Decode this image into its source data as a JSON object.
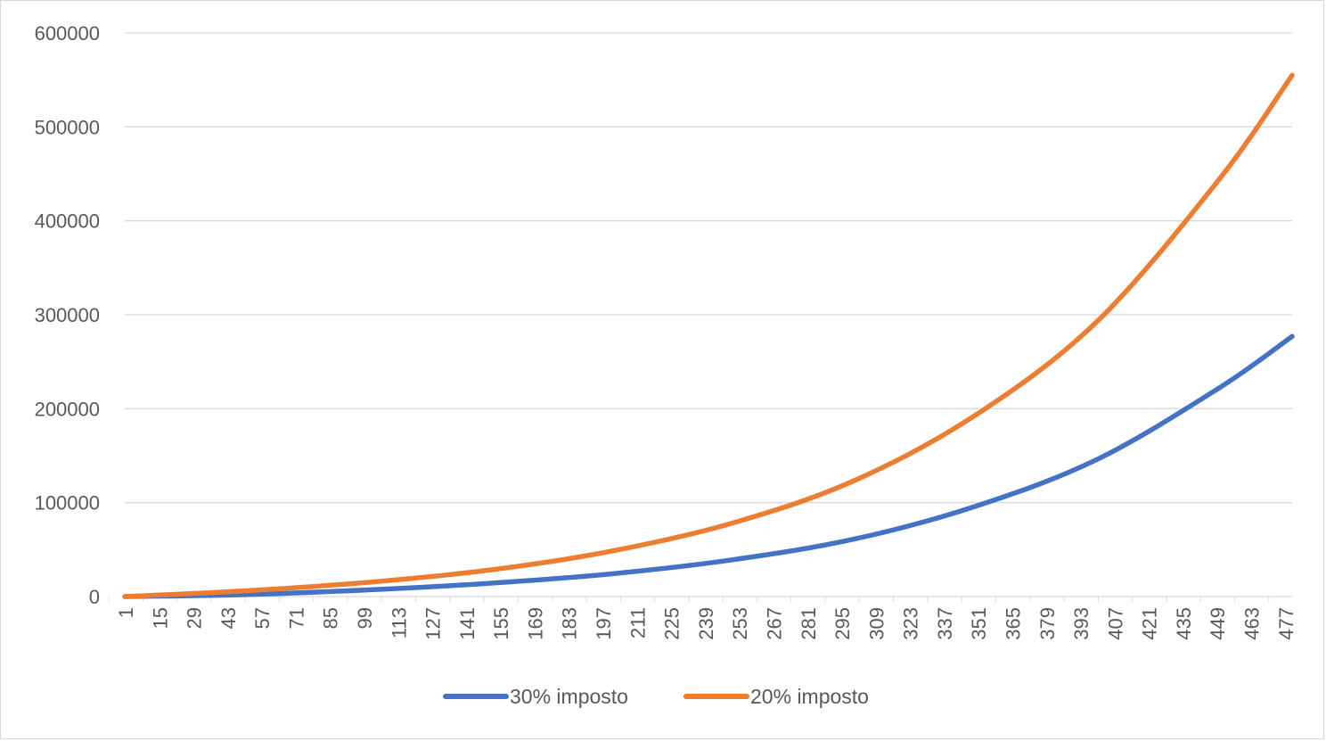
{
  "chart_data": {
    "type": "line",
    "title": "",
    "xlabel": "",
    "ylabel": "",
    "x_tick_labels": [
      "1",
      "15",
      "29",
      "43",
      "57",
      "71",
      "85",
      "99",
      "113",
      "127",
      "141",
      "155",
      "169",
      "183",
      "197",
      "211",
      "225",
      "239",
      "253",
      "267",
      "281",
      "295",
      "309",
      "323",
      "337",
      "351",
      "365",
      "379",
      "393",
      "407",
      "421",
      "435",
      "449",
      "463",
      "477"
    ],
    "x_range": [
      1,
      480
    ],
    "y_tick_labels": [
      "0",
      "100000",
      "200000",
      "300000",
      "400000",
      "500000",
      "600000"
    ],
    "ylim": [
      0,
      600000
    ],
    "grid": "horizontal",
    "legend_position": "bottom",
    "series": [
      {
        "name": "30% imposto",
        "color": "#4472c4",
        "x": [
          1,
          50,
          100,
          150,
          200,
          250,
          300,
          350,
          400,
          450,
          480
        ],
        "y": [
          0,
          2000,
          7000,
          14000,
          24000,
          39000,
          61000,
          96000,
          146000,
          222000,
          277000
        ]
      },
      {
        "name": "20% imposto",
        "color": "#ed7d31",
        "x": [
          1,
          50,
          100,
          150,
          200,
          250,
          300,
          350,
          400,
          450,
          480
        ],
        "y": [
          0,
          6000,
          15000,
          28000,
          48000,
          78000,
          123000,
          193000,
          293000,
          444000,
          555000
        ]
      }
    ]
  }
}
